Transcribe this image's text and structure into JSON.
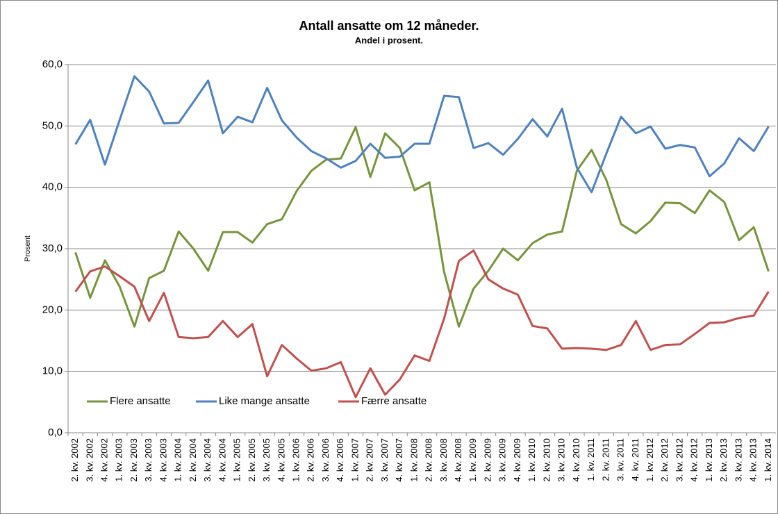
{
  "chart_data": {
    "type": "line",
    "title": "Antall ansatte om 12 måneder.",
    "subtitle": "Andel i prosent.",
    "ylabel": "Prosent",
    "categories": [
      "2. kv. 2002",
      "3. kv. 2002",
      "4. kv. 2002",
      "1. kv. 2003",
      "2. kv. 2003",
      "3. kv. 2003",
      "4. kv. 2003",
      "1. kv. 2004",
      "2. kv. 2004",
      "3. kv. 2004",
      "4. kv. 2004",
      "1. kv. 2005",
      "2. kv. 2005",
      "3. kv. 2005",
      "4. kv. 2005",
      "1. kv. 2006",
      "2. kv. 2006",
      "3. kv. 2006",
      "4. kv. 2006",
      "1. kv. 2007",
      "2. kv. 2007",
      "3. kv. 2007",
      "4. kv. 2007",
      "1. kv. 2008",
      "2. kv. 2008",
      "3. kv. 2008",
      "4. kv. 2008",
      "1. kv. 2009",
      "2. kv. 2009",
      "3. kv. 2009",
      "4. kv. 2009",
      "1. kv. 2010",
      "2. kv. 2010",
      "3. kv. 2010",
      "4. kv. 2010",
      "1. kv. 2011",
      "2. kv. 2011",
      "3. kv. 2011",
      "4. kv. 2011",
      "1. kv. 2012",
      "2. kv. 2012",
      "3. kv. 2012",
      "4. kv. 2012",
      "1. kv. 2013",
      "2. kv. 2013",
      "3. kv. 2013",
      "4. kv. 2013",
      "1. kv. 2014"
    ],
    "series": [
      {
        "name": "Flere ansatte",
        "color": "#77933c",
        "values": [
          29.4,
          22.0,
          28.1,
          23.8,
          17.3,
          25.2,
          26.4,
          32.8,
          30.0,
          26.4,
          32.7,
          32.7,
          31.0,
          34.0,
          34.8,
          39.4,
          42.7,
          44.5,
          44.7,
          49.8,
          41.7,
          48.8,
          46.4,
          39.5,
          40.8,
          26.2,
          17.3,
          23.5,
          26.4,
          30.0,
          28.1,
          30.9,
          32.3,
          32.8,
          42.7,
          46.1,
          41.2,
          34.0,
          32.5,
          34.5,
          37.5,
          37.4,
          35.8,
          39.5,
          37.6,
          31.4,
          33.5,
          26.3
        ]
      },
      {
        "name": "Like mange ansatte",
        "color": "#4f81bd",
        "values": [
          47.0,
          51.0,
          43.7,
          51.0,
          58.1,
          55.6,
          50.4,
          50.5,
          53.9,
          57.4,
          48.8,
          51.5,
          50.6,
          56.2,
          50.9,
          48.1,
          45.9,
          44.7,
          43.2,
          44.3,
          47.1,
          44.8,
          45.0,
          47.1,
          47.1,
          54.9,
          54.7,
          46.4,
          47.2,
          45.3,
          47.9,
          51.1,
          48.3,
          52.8,
          43.2,
          39.2,
          45.5,
          51.5,
          48.8,
          49.9,
          46.3,
          46.9,
          46.5,
          41.8,
          43.9,
          48.0,
          45.9,
          49.9
        ]
      },
      {
        "name": "Færre ansatte",
        "color": "#c0504d",
        "values": [
          23.0,
          26.3,
          27.1,
          25.5,
          23.8,
          18.2,
          22.8,
          15.6,
          15.4,
          15.6,
          18.2,
          15.6,
          17.7,
          9.2,
          14.3,
          12.1,
          10.1,
          10.5,
          11.5,
          5.8,
          10.5,
          6.2,
          8.7,
          12.6,
          11.7,
          18.6,
          28.0,
          29.7,
          25.0,
          23.5,
          22.5,
          17.4,
          17.0,
          13.7,
          13.8,
          13.7,
          13.5,
          14.3,
          18.2,
          13.5,
          14.3,
          14.4,
          16.1,
          17.9,
          18.0,
          18.7,
          19.1,
          23.0
        ]
      }
    ],
    "ylim": [
      0,
      60
    ],
    "yticks": [
      {
        "value": 0,
        "label": "0,0"
      },
      {
        "value": 10,
        "label": "10,0"
      },
      {
        "value": 20,
        "label": "20,0"
      },
      {
        "value": 30,
        "label": "30,0"
      },
      {
        "value": 40,
        "label": "40,0"
      },
      {
        "value": 50,
        "label": "50,0"
      },
      {
        "value": 60,
        "label": "60,0"
      }
    ],
    "grid": true,
    "legend": "lower left"
  }
}
